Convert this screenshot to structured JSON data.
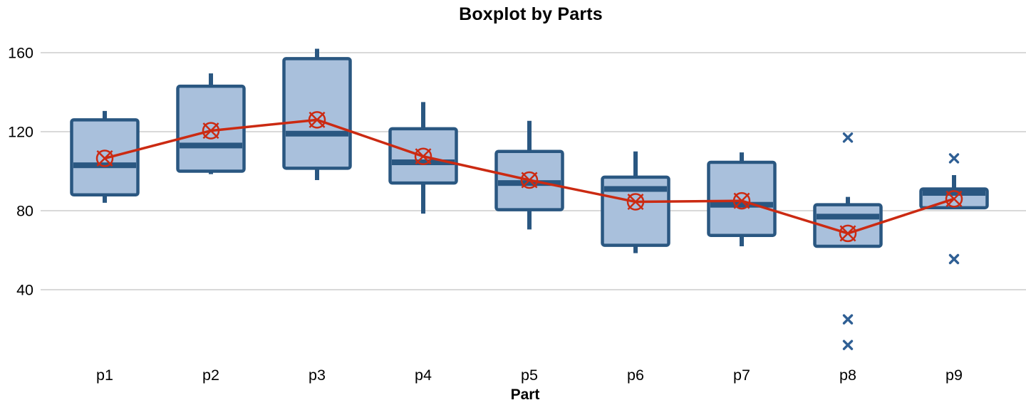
{
  "page": {
    "background": "#ffffff"
  },
  "chart_data": {
    "type": "boxplot",
    "title": "Boxplot by Parts",
    "xlabel": "Part",
    "ylabel": "",
    "categories": [
      "p1",
      "p2",
      "p3",
      "p4",
      "p5",
      "p6",
      "p7",
      "p8",
      "p9"
    ],
    "yticks": [
      40,
      80,
      120,
      160
    ],
    "ylim": [
      0,
      170
    ],
    "grid": "horizontal",
    "legend": "none",
    "mean_line": true,
    "mean_marker": "circle-x",
    "outlier_marker": "x",
    "series": [
      {
        "part": "p1",
        "whisker_low": 84,
        "q1": 88,
        "median": 103,
        "q3": 126,
        "whisker_high": 130.5,
        "mean": 106.5,
        "outliers": []
      },
      {
        "part": "p2",
        "whisker_low": 98.5,
        "q1": 100,
        "median": 113,
        "q3": 143,
        "whisker_high": 149.5,
        "mean": 120.5,
        "outliers": []
      },
      {
        "part": "p3",
        "whisker_low": 95.5,
        "q1": 101.5,
        "median": 119,
        "q3": 157,
        "whisker_high": 162,
        "mean": 126,
        "outliers": []
      },
      {
        "part": "p4",
        "whisker_low": 78.5,
        "q1": 94,
        "median": 104.5,
        "q3": 121.5,
        "whisker_high": 135,
        "mean": 107.5,
        "outliers": []
      },
      {
        "part": "p5",
        "whisker_low": 70.5,
        "q1": 80.5,
        "median": 94,
        "q3": 110,
        "whisker_high": 125.5,
        "mean": 95.5,
        "outliers": []
      },
      {
        "part": "p6",
        "whisker_low": 58.5,
        "q1": 62.5,
        "median": 91,
        "q3": 97,
        "whisker_high": 110,
        "mean": 84.5,
        "outliers": []
      },
      {
        "part": "p7",
        "whisker_low": 62,
        "q1": 67.5,
        "median": 83,
        "q3": 104.5,
        "whisker_high": 109.5,
        "mean": 85,
        "outliers": []
      },
      {
        "part": "p8",
        "whisker_low": 62,
        "q1": 62,
        "median": 77,
        "q3": 83,
        "whisker_high": 87,
        "mean": 68.5,
        "outliers": [
          117,
          25,
          12
        ]
      },
      {
        "part": "p9",
        "whisker_low": 81.5,
        "q1": 81.5,
        "median": 89,
        "q3": 91,
        "whisker_high": 98,
        "mean": 86,
        "outliers": [
          106.5,
          55.5
        ]
      }
    ],
    "colors": {
      "box_fill": "#a9c0dc",
      "box_stroke": "#2a5781",
      "median": "#2a5781",
      "whisker": "#2a5781",
      "outlier": "#2f5f94",
      "mean_line": "#cb2a12",
      "gridline": "#d9d9d9",
      "text": "#000000"
    }
  }
}
